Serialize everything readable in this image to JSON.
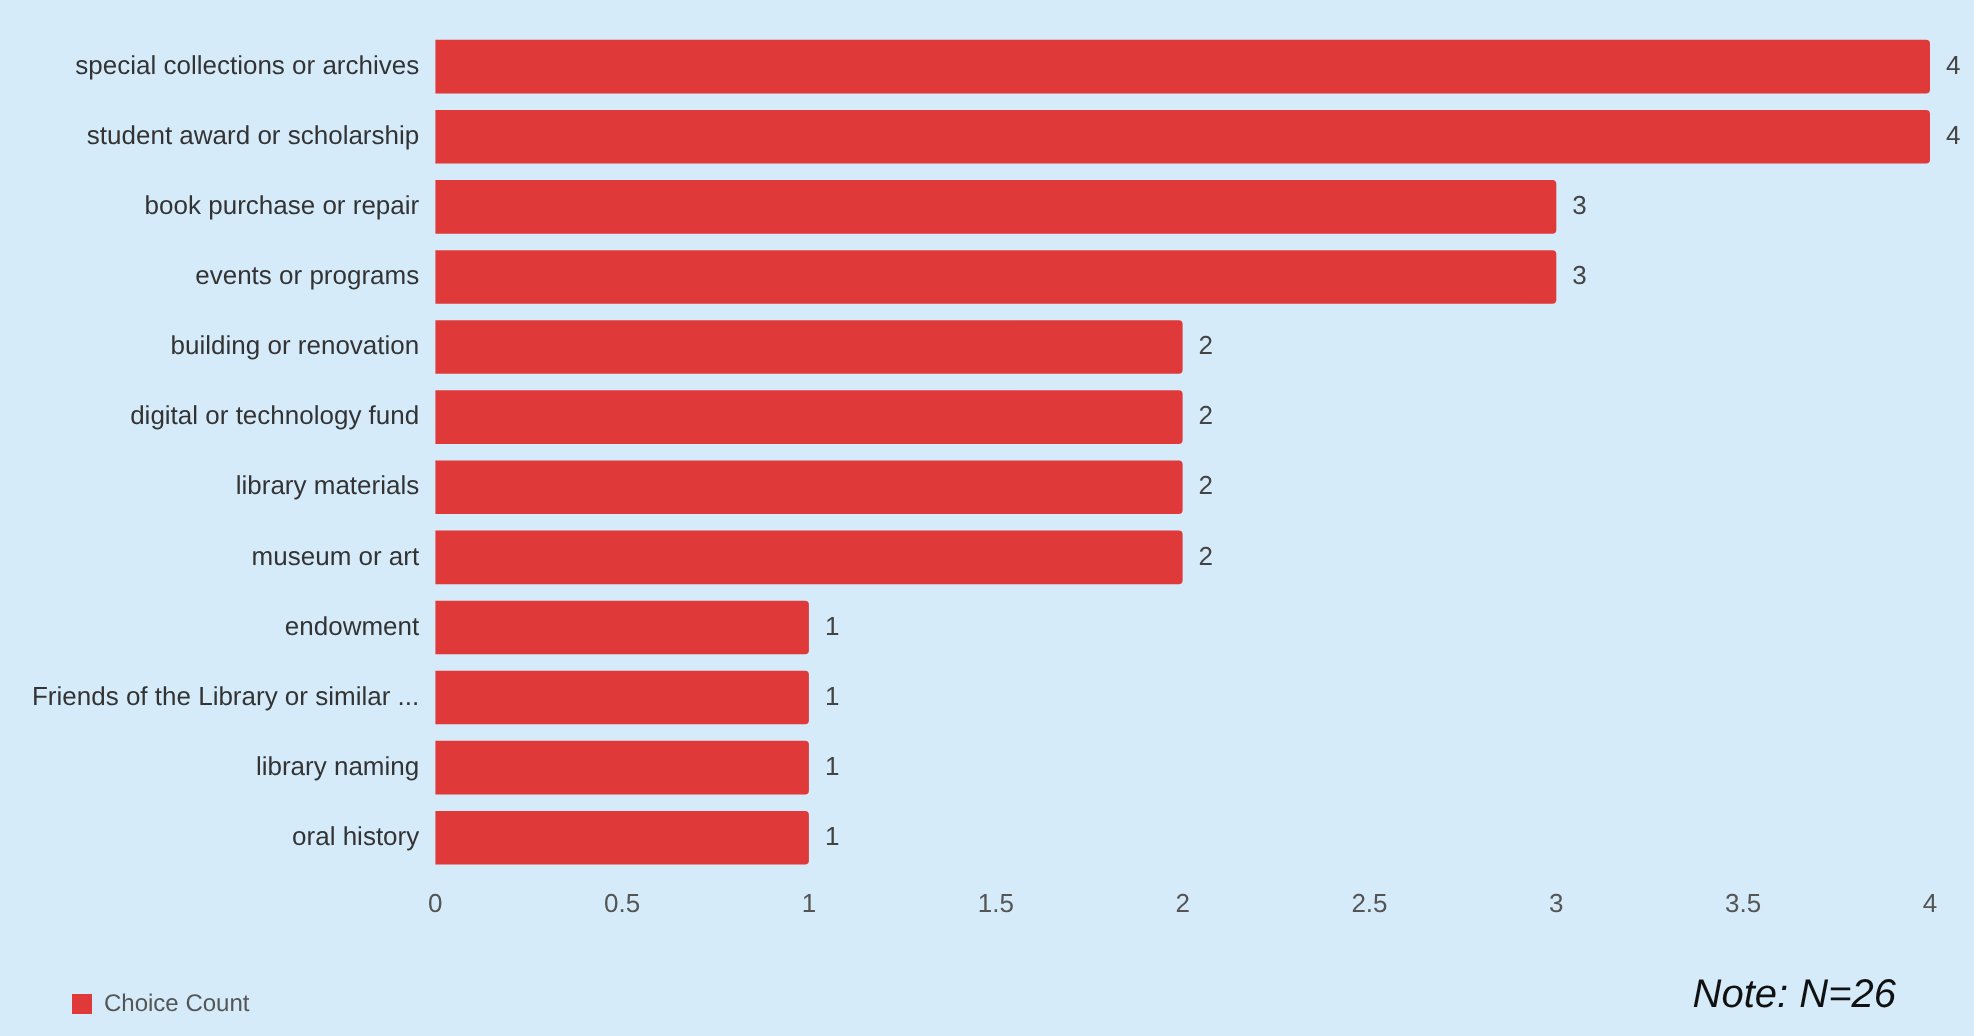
{
  "chart_data": {
    "type": "bar",
    "orientation": "horizontal",
    "categories": [
      "special collections or archives",
      "student award or scholarship",
      "book purchase or repair",
      "events or programs",
      "building or renovation",
      "digital or technology fund",
      "library materials",
      "museum or art",
      "endowment",
      "Friends of the Library or similar ...",
      "library naming",
      "oral history"
    ],
    "series": [
      {
        "name": "Choice Count",
        "color": "#e0393a",
        "values": [
          4,
          4,
          3,
          3,
          2,
          2,
          2,
          2,
          1,
          1,
          1,
          1
        ]
      }
    ],
    "xlim": [
      0,
      4
    ],
    "xticks": [
      0,
      0.5,
      1,
      1.5,
      2,
      2.5,
      3,
      3.5,
      4
    ],
    "grid": false,
    "legend": "bottom left",
    "data_labels": true,
    "annotations": [
      "Note: N=26"
    ]
  }
}
